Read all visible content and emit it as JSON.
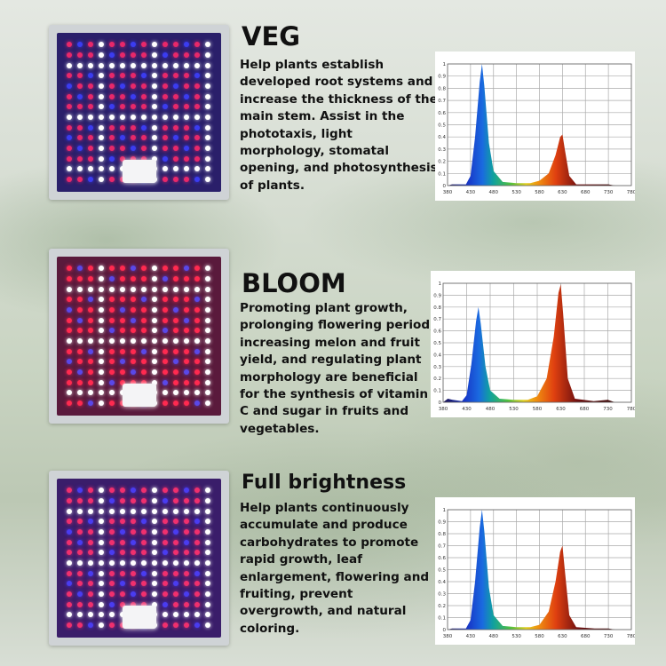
{
  "sections": [
    {
      "title": "VEG",
      "description": "Help plants establish developed root systems and increase the thickness of the main stem. Assist in the phototaxis, light morphology, stomatal opening, and photosynthesis of plants.",
      "lamp_colors": [
        "#e8286a",
        "#3b3cf0",
        "#ffffff"
      ]
    },
    {
      "title": "BLOOM",
      "description": "Promoting plant growth, prolonging flowering period, increasing melon and fruit yield, and regulating plant morphology are beneficial for the synthesis of vitamin C and sugar in fruits and vegetables.",
      "lamp_colors": [
        "#ff2a50",
        "#5a48e8",
        "#ffffff"
      ]
    },
    {
      "title": "Full brightness",
      "description": "Help plants continuously accumulate and produce carbohydrates to promote rapid growth, leaf enlargement, flowering and fruiting, prevent overgrowth, and natural coloring.",
      "lamp_colors": [
        "#f0306e",
        "#4a3cf0",
        "#ffffff"
      ]
    }
  ],
  "chart_data": [
    {
      "type": "area",
      "xlim": [
        380,
        760
      ],
      "ylim": [
        0,
        1
      ],
      "grid": true,
      "xticks": [
        "380",
        "430",
        "480",
        "530",
        "580",
        "630",
        "680",
        "730",
        "780"
      ],
      "yticks": [
        "0",
        "0.1",
        "0.2",
        "0.3",
        "0.4",
        "0.5",
        "0.6",
        "0.7",
        "0.8",
        "0.9",
        "1"
      ],
      "x": [
        380,
        390,
        400,
        420,
        430,
        440,
        450,
        455,
        460,
        470,
        480,
        500,
        530,
        560,
        580,
        600,
        615,
        625,
        630,
        635,
        645,
        660,
        700,
        730,
        745,
        760
      ],
      "values": [
        0,
        0.01,
        0.01,
        0.01,
        0.08,
        0.4,
        0.85,
        1.0,
        0.82,
        0.35,
        0.12,
        0.03,
        0.02,
        0.02,
        0.04,
        0.1,
        0.25,
        0.4,
        0.42,
        0.3,
        0.08,
        0.01,
        0.01,
        0.01,
        0,
        0
      ]
    },
    {
      "type": "area",
      "xlim": [
        380,
        760
      ],
      "ylim": [
        0,
        1
      ],
      "grid": true,
      "xticks": [
        "380",
        "430",
        "480",
        "530",
        "580",
        "630",
        "680",
        "730",
        "780"
      ],
      "yticks": [
        "0",
        "0.1",
        "0.2",
        "0.3",
        "0.4",
        "0.5",
        "0.6",
        "0.7",
        "0.8",
        "0.9",
        "1"
      ],
      "x": [
        380,
        390,
        400,
        420,
        430,
        440,
        450,
        455,
        460,
        470,
        480,
        500,
        530,
        560,
        580,
        600,
        615,
        625,
        630,
        635,
        645,
        660,
        700,
        730,
        745,
        760
      ],
      "values": [
        0,
        0.03,
        0.02,
        0.01,
        0.06,
        0.32,
        0.68,
        0.8,
        0.66,
        0.3,
        0.1,
        0.03,
        0.02,
        0.02,
        0.05,
        0.2,
        0.55,
        0.92,
        0.99,
        0.75,
        0.2,
        0.03,
        0.01,
        0.02,
        0,
        0
      ]
    },
    {
      "type": "area",
      "xlim": [
        380,
        760
      ],
      "ylim": [
        0,
        1
      ],
      "grid": true,
      "xticks": [
        "380",
        "430",
        "480",
        "530",
        "580",
        "630",
        "680",
        "730",
        "780"
      ],
      "yticks": [
        "0",
        "0.1",
        "0.2",
        "0.3",
        "0.4",
        "0.5",
        "0.6",
        "0.7",
        "0.8",
        "0.9",
        "1"
      ],
      "x": [
        380,
        390,
        400,
        420,
        430,
        440,
        450,
        455,
        460,
        470,
        480,
        500,
        530,
        560,
        580,
        600,
        615,
        625,
        630,
        635,
        645,
        660,
        700,
        730,
        745,
        760
      ],
      "values": [
        0,
        0.01,
        0.01,
        0.01,
        0.08,
        0.4,
        0.85,
        1.0,
        0.82,
        0.35,
        0.12,
        0.03,
        0.02,
        0.02,
        0.04,
        0.15,
        0.4,
        0.65,
        0.7,
        0.5,
        0.12,
        0.02,
        0.01,
        0.01,
        0,
        0
      ]
    }
  ]
}
